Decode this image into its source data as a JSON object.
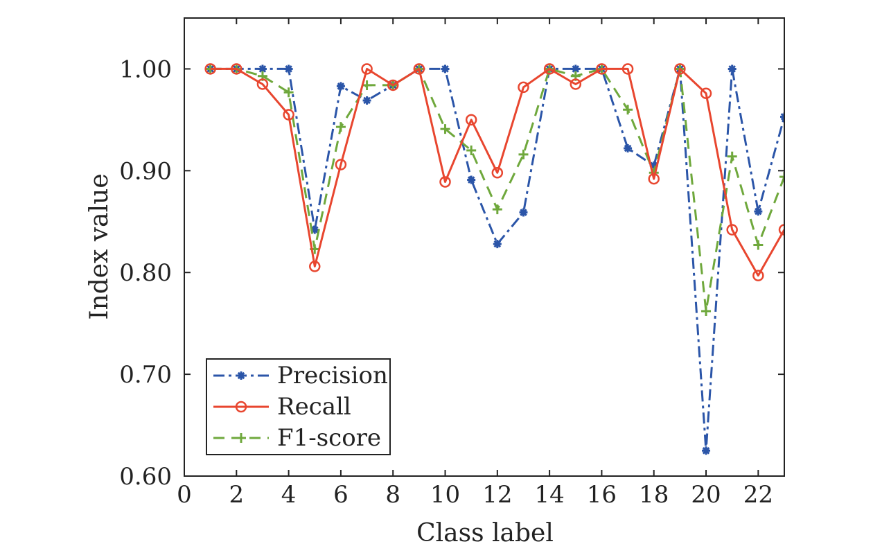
{
  "chart_data": {
    "type": "line",
    "xlabel": "Class label",
    "ylabel": "Index value",
    "xlim": [
      0,
      23
    ],
    "ylim": [
      0.6,
      1.05
    ],
    "xticks": [
      0,
      2,
      4,
      6,
      8,
      10,
      12,
      14,
      16,
      18,
      20,
      22
    ],
    "xtick_labels": [
      "0",
      "2",
      "4",
      "6",
      "8",
      "10",
      "12",
      "14",
      "16",
      "18",
      "20",
      "22"
    ],
    "yticks": [
      0.6,
      0.7,
      0.8,
      0.9,
      1.0
    ],
    "ytick_labels": [
      "0.60",
      "0.70",
      "0.80",
      "0.90",
      "1.00"
    ],
    "grid": false,
    "legend_position": "bottom-left",
    "x": [
      1,
      2,
      3,
      4,
      5,
      6,
      7,
      8,
      9,
      10,
      11,
      12,
      13,
      14,
      15,
      16,
      17,
      18,
      19,
      20,
      21,
      22,
      23
    ],
    "series": [
      {
        "name": "Precision",
        "color": "#2b55a8",
        "marker": "asterisk",
        "line_style": "dash-dot",
        "values": [
          1.0,
          1.0,
          1.0,
          1.0,
          0.842,
          0.983,
          0.969,
          0.984,
          1.0,
          1.0,
          0.891,
          0.828,
          0.859,
          1.0,
          1.0,
          1.0,
          0.922,
          0.905,
          1.0,
          0.625,
          1.0,
          0.86,
          0.953
        ]
      },
      {
        "name": "Recall",
        "color": "#e8462f",
        "marker": "circle",
        "line_style": "solid",
        "values": [
          1.0,
          1.0,
          0.985,
          0.955,
          0.806,
          0.906,
          1.0,
          0.984,
          1.0,
          0.889,
          0.95,
          0.898,
          0.982,
          1.0,
          0.985,
          1.0,
          1.0,
          0.892,
          1.0,
          0.976,
          0.842,
          0.797,
          0.842
        ]
      },
      {
        "name": "F1-score",
        "color": "#6fa83c",
        "marker": "plus",
        "line_style": "dashed",
        "values": [
          1.0,
          1.0,
          0.993,
          0.977,
          0.823,
          0.943,
          0.984,
          0.984,
          1.0,
          0.941,
          0.92,
          0.862,
          0.916,
          1.0,
          0.993,
          1.0,
          0.96,
          0.898,
          1.0,
          0.762,
          0.914,
          0.827,
          0.894
        ]
      }
    ]
  }
}
